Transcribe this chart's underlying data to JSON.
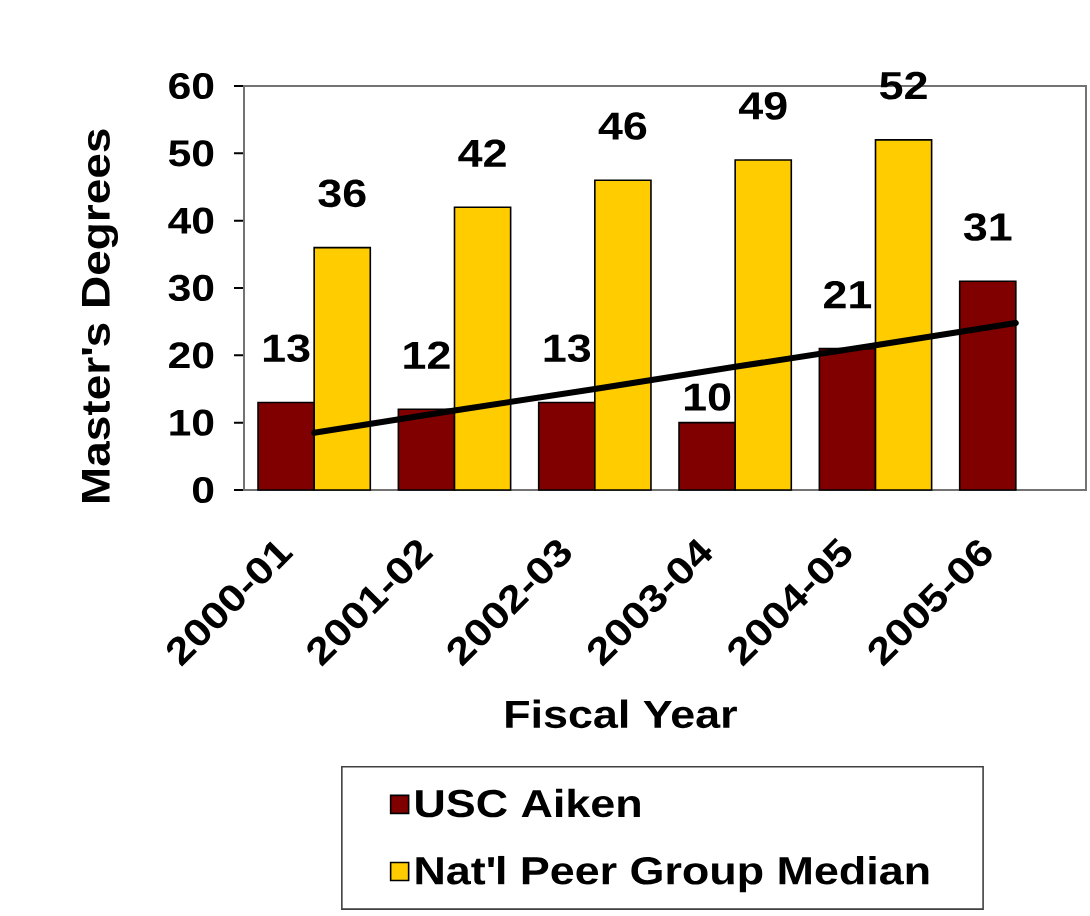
{
  "chart_data": {
    "type": "bar",
    "xlabel": "Fiscal Year",
    "ylabel": "Master's Degrees",
    "categories": [
      "2000-01",
      "2001-02",
      "2002-03",
      "2003-04",
      "2004-05",
      "2005-06"
    ],
    "series": [
      {
        "name": "USC Aiken",
        "color": "#800000",
        "values": [
          13,
          12,
          13,
          10,
          21,
          31
        ],
        "value_labels": [
          "13",
          "12",
          "13",
          "10",
          "21",
          "31"
        ]
      },
      {
        "name": "Nat'l Peer Group Median",
        "color": "#ffcc00",
        "values": [
          36,
          42,
          46,
          49,
          52,
          null
        ],
        "value_labels": [
          "36",
          "42",
          "46",
          "49",
          "52",
          null
        ]
      },
      {
        "type": "line",
        "color": "#000000",
        "values": [
          8.5,
          11.8,
          15,
          18.3,
          21.5,
          24.8
        ]
      }
    ],
    "ylim": [
      0,
      60
    ],
    "yticks": [
      0,
      10,
      20,
      30,
      40,
      50,
      60
    ],
    "legend": "bottom"
  }
}
